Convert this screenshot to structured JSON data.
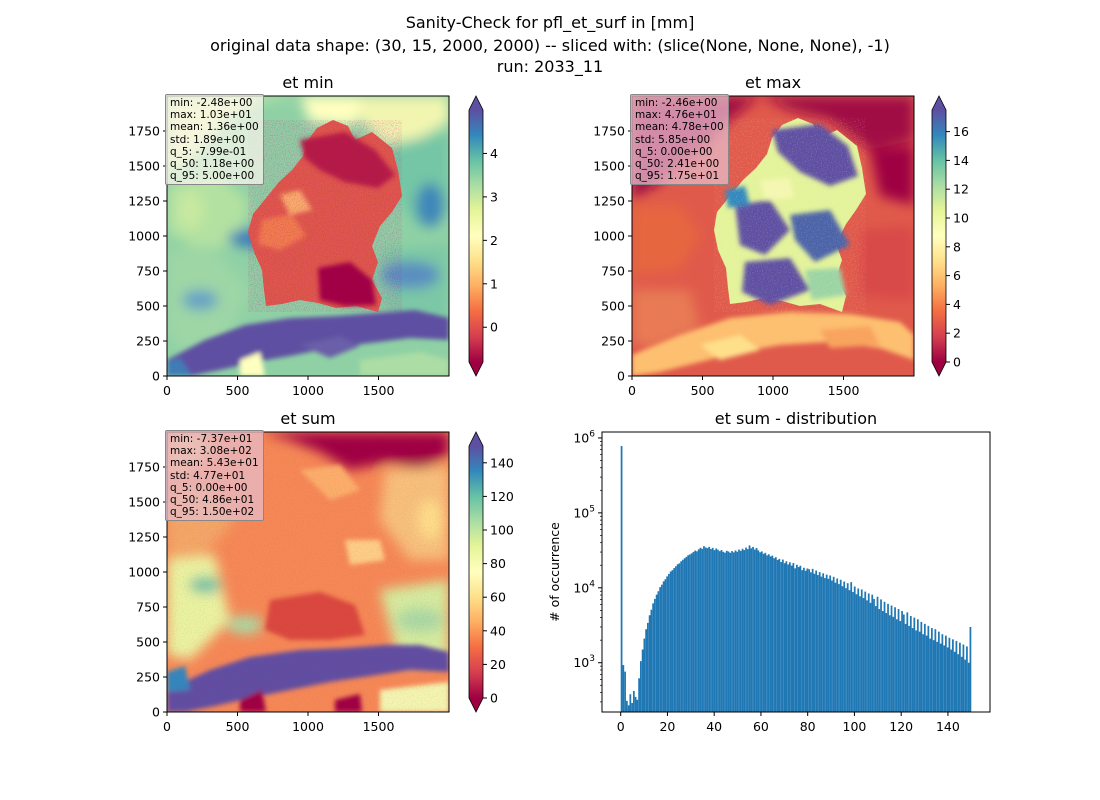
{
  "suptitle": {
    "line1": "Sanity-Check for pfl_et_surf in [mm]",
    "line2": "original data shape: (30, 15, 2000, 2000) -- sliced with: (slice(None, None, None), -1)",
    "line3": "run: 2033_11"
  },
  "panels": [
    {
      "title": "et min",
      "stats": [
        "min: -2.48e+00",
        "max: 1.03e+01",
        "mean: 1.36e+00",
        "std: 1.89e+00",
        "q_5: -7.99e-01",
        "q_50: 1.18e+00",
        "q_95: 5.00e+00"
      ],
      "xticks": [
        "0",
        "500",
        "1000",
        "1500"
      ],
      "yticks": [
        "0",
        "250",
        "500",
        "750",
        "1000",
        "1250",
        "1500",
        "1750"
      ],
      "colorbar": {
        "min": -0.8,
        "max": 5.0,
        "ticks": [
          0,
          1,
          2,
          3,
          4
        ]
      }
    },
    {
      "title": "et max",
      "stats": [
        "min: -2.46e+00",
        "max: 4.76e+01",
        "mean: 4.78e+00",
        "std: 5.85e+00",
        "q_5: 0.00e+00",
        "q_50: 2.41e+00",
        "q_95: 1.75e+01"
      ],
      "xticks": [
        "0",
        "500",
        "1000",
        "1500"
      ],
      "yticks": [
        "0",
        "250",
        "500",
        "750",
        "1000",
        "1250",
        "1500",
        "1750"
      ],
      "colorbar": {
        "min": 0,
        "max": 17.5,
        "ticks": [
          0,
          2,
          4,
          6,
          8,
          10,
          12,
          14,
          16
        ]
      }
    },
    {
      "title": "et sum",
      "stats": [
        "min: -7.37e+01",
        "max: 3.08e+02",
        "mean: 5.43e+01",
        "std: 4.77e+01",
        "q_5: 0.00e+00",
        "q_50: 4.86e+01",
        "q_95: 1.50e+02"
      ],
      "xticks": [
        "0",
        "500",
        "1000",
        "1500"
      ],
      "yticks": [
        "0",
        "250",
        "500",
        "750",
        "1000",
        "1250",
        "1500",
        "1750"
      ],
      "colorbar": {
        "min": 0,
        "max": 150,
        "ticks": [
          0,
          20,
          40,
          60,
          80,
          100,
          120,
          140
        ]
      }
    }
  ],
  "chart_data": {
    "type": "bar",
    "title": "et sum - distribution",
    "xlabel": "",
    "ylabel": "# of occurrence",
    "yscale": "log",
    "xlim": [
      -8,
      158
    ],
    "ylim": [
      220,
      1200000
    ],
    "xticks": [
      0,
      20,
      40,
      60,
      80,
      100,
      120,
      140
    ],
    "yticks": [
      1000,
      10000,
      100000,
      1000000
    ],
    "bin_width": 0.75,
    "bar_color": "#1f77b4",
    "bins": [
      [
        0.0,
        780000
      ],
      [
        0.75,
        930
      ],
      [
        1.5,
        760
      ],
      [
        2.25,
        310
      ],
      [
        3.0,
        270
      ],
      [
        3.75,
        380
      ],
      [
        4.5,
        290
      ],
      [
        5.25,
        420
      ],
      [
        6.0,
        350
      ],
      [
        6.75,
        320
      ],
      [
        7.5,
        620
      ],
      [
        8.25,
        1050
      ],
      [
        9.0,
        1500
      ],
      [
        9.75,
        2100
      ],
      [
        10.5,
        2800
      ],
      [
        11.25,
        3400
      ],
      [
        12.0,
        4300
      ],
      [
        12.75,
        5100
      ],
      [
        13.5,
        6200
      ],
      [
        14.25,
        7100
      ],
      [
        15.0,
        8100
      ],
      [
        15.75,
        9000
      ],
      [
        16.5,
        10200
      ],
      [
        17.25,
        11000
      ],
      [
        18.0,
        12200
      ],
      [
        18.75,
        13000
      ],
      [
        19.5,
        14200
      ],
      [
        20.25,
        15300
      ],
      [
        21.0,
        16500
      ],
      [
        21.75,
        17200
      ],
      [
        22.5,
        18300
      ],
      [
        23.25,
        19400
      ],
      [
        24.0,
        20600
      ],
      [
        24.75,
        21200
      ],
      [
        25.5,
        22600
      ],
      [
        26.25,
        23700
      ],
      [
        27.0,
        24800
      ],
      [
        27.75,
        25900
      ],
      [
        28.5,
        27200
      ],
      [
        29.25,
        27900
      ],
      [
        30.0,
        28800
      ],
      [
        30.75,
        30100
      ],
      [
        31.5,
        31400
      ],
      [
        32.25,
        30700
      ],
      [
        33.0,
        32600
      ],
      [
        33.75,
        34200
      ],
      [
        34.5,
        33100
      ],
      [
        35.25,
        35900
      ],
      [
        36.0,
        34500
      ],
      [
        36.75,
        33800
      ],
      [
        37.5,
        35200
      ],
      [
        38.25,
        32900
      ],
      [
        39.0,
        34100
      ],
      [
        39.75,
        31800
      ],
      [
        40.5,
        33500
      ],
      [
        41.25,
        32200
      ],
      [
        42.0,
        30800
      ],
      [
        42.75,
        31900
      ],
      [
        43.5,
        30200
      ],
      [
        44.25,
        29400
      ],
      [
        45.0,
        31200
      ],
      [
        45.75,
        30500
      ],
      [
        46.5,
        29300
      ],
      [
        47.25,
        30900
      ],
      [
        48.0,
        29700
      ],
      [
        48.75,
        31500
      ],
      [
        49.5,
        30300
      ],
      [
        50.25,
        32400
      ],
      [
        51.0,
        31100
      ],
      [
        51.75,
        33200
      ],
      [
        52.5,
        31900
      ],
      [
        53.25,
        34400
      ],
      [
        54.0,
        32800
      ],
      [
        54.75,
        36800
      ],
      [
        55.5,
        33600
      ],
      [
        56.25,
        35100
      ],
      [
        57.0,
        32400
      ],
      [
        57.75,
        34000
      ],
      [
        58.5,
        31600
      ],
      [
        59.25,
        29800
      ],
      [
        60.0,
        30600
      ],
      [
        60.75,
        28400
      ],
      [
        61.5,
        29300
      ],
      [
        62.25,
        27100
      ],
      [
        63.0,
        28000
      ],
      [
        63.75,
        26200
      ],
      [
        64.5,
        26900
      ],
      [
        65.25,
        24800
      ],
      [
        66.0,
        25600
      ],
      [
        66.75,
        23500
      ],
      [
        67.5,
        24300
      ],
      [
        68.25,
        22100
      ],
      [
        69.0,
        23800
      ],
      [
        69.75,
        21300
      ],
      [
        70.5,
        22600
      ],
      [
        71.25,
        20500
      ],
      [
        72.0,
        21900
      ],
      [
        72.75,
        19800
      ],
      [
        73.5,
        21400
      ],
      [
        74.25,
        18200
      ],
      [
        75.0,
        20300
      ],
      [
        75.75,
        18900
      ],
      [
        76.5,
        19700
      ],
      [
        77.25,
        17200
      ],
      [
        78.0,
        18500
      ],
      [
        78.75,
        16900
      ],
      [
        79.5,
        18100
      ],
      [
        80.25,
        17700
      ],
      [
        81.0,
        16100
      ],
      [
        81.75,
        17900
      ],
      [
        82.5,
        15400
      ],
      [
        83.25,
        17000
      ],
      [
        84.0,
        14800
      ],
      [
        84.75,
        16200
      ],
      [
        85.5,
        14100
      ],
      [
        86.25,
        15600
      ],
      [
        87.0,
        13500
      ],
      [
        87.75,
        15000
      ],
      [
        88.5,
        13200
      ],
      [
        89.25,
        14600
      ],
      [
        90.0,
        12500
      ],
      [
        90.75,
        14000
      ],
      [
        91.5,
        11700
      ],
      [
        92.25,
        13300
      ],
      [
        93.0,
        11200
      ],
      [
        93.75,
        12800
      ],
      [
        94.5,
        10500
      ],
      [
        95.25,
        12100
      ],
      [
        96.0,
        9900
      ],
      [
        96.75,
        11500
      ],
      [
        97.5,
        9300
      ],
      [
        98.25,
        11900
      ],
      [
        99.0,
        8800
      ],
      [
        99.75,
        10400
      ],
      [
        100.5,
        8200
      ],
      [
        101.25,
        9800
      ],
      [
        102.0,
        7700
      ],
      [
        102.75,
        9500
      ],
      [
        103.5,
        7300
      ],
      [
        104.25,
        8900
      ],
      [
        105.0,
        6800
      ],
      [
        105.75,
        8400
      ],
      [
        106.5,
        6300
      ],
      [
        107.25,
        8100
      ],
      [
        108.0,
        7100
      ],
      [
        108.75,
        5700
      ],
      [
        109.5,
        7600
      ],
      [
        110.25,
        5200
      ],
      [
        111.0,
        7000
      ],
      [
        111.75,
        4900
      ],
      [
        112.5,
        6500
      ],
      [
        113.25,
        4600
      ],
      [
        114.0,
        6100
      ],
      [
        114.75,
        4300
      ],
      [
        115.5,
        5800
      ],
      [
        116.25,
        4100
      ],
      [
        117.0,
        5500
      ],
      [
        117.75,
        3800
      ],
      [
        118.5,
        5200
      ],
      [
        119.25,
        3600
      ],
      [
        120.0,
        4900
      ],
      [
        120.75,
        4400
      ],
      [
        121.5,
        3300
      ],
      [
        122.25,
        4700
      ],
      [
        123.0,
        3100
      ],
      [
        123.75,
        4200
      ],
      [
        124.5,
        2900
      ],
      [
        125.25,
        4000
      ],
      [
        126.0,
        2700
      ],
      [
        126.75,
        3800
      ],
      [
        127.5,
        2600
      ],
      [
        128.25,
        3500
      ],
      [
        129.0,
        2400
      ],
      [
        129.75,
        3300
      ],
      [
        130.5,
        2300
      ],
      [
        131.25,
        3100
      ],
      [
        132.0,
        2100
      ],
      [
        132.75,
        2900
      ],
      [
        133.5,
        2000
      ],
      [
        134.25,
        2800
      ],
      [
        135.0,
        1900
      ],
      [
        135.75,
        2600
      ],
      [
        136.5,
        1800
      ],
      [
        137.25,
        2400
      ],
      [
        138.0,
        1700
      ],
      [
        138.75,
        2300
      ],
      [
        139.5,
        1600
      ],
      [
        140.25,
        2150
      ],
      [
        141.0,
        1500
      ],
      [
        141.75,
        2050
      ],
      [
        142.5,
        1400
      ],
      [
        143.25,
        1950
      ],
      [
        144.0,
        1300
      ],
      [
        144.75,
        1850
      ],
      [
        145.5,
        1200
      ],
      [
        146.25,
        1750
      ],
      [
        147.0,
        1100
      ],
      [
        147.75,
        1650
      ],
      [
        148.5,
        1000
      ],
      [
        149.25,
        3000
      ]
    ]
  }
}
